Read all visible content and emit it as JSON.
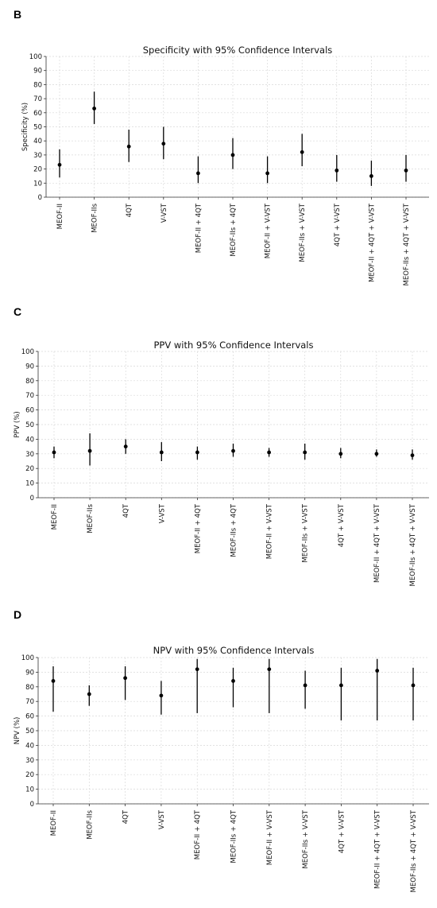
{
  "panels": [
    {
      "letter": "B"
    },
    {
      "letter": "C"
    },
    {
      "letter": "D"
    }
  ],
  "chart_data": [
    {
      "type": "scatter",
      "title": "Specificity with 95% Confidence Intervals",
      "ylabel": "Specificity (%)",
      "xlabel": "",
      "ylim": [
        0,
        100
      ],
      "yticks": [
        0,
        10,
        20,
        30,
        40,
        50,
        60,
        70,
        80,
        90,
        100
      ],
      "grid": true,
      "categories": [
        "MEOF-II",
        "MEOF-IIs",
        "4QT",
        "V-VST",
        "MEOF-II + 4QT",
        "MEOF-IIs + 4QT",
        "MEOF-II + V-VST",
        "MEOF-IIs + V-VST",
        "4QT + V-VST",
        "MEOF-II + 4QT + V-VST",
        "MEOF-IIs + 4QT + V-VST"
      ],
      "values": [
        23,
        63,
        36,
        38,
        17,
        30,
        17,
        32,
        19,
        15,
        19
      ],
      "lower": [
        14,
        52,
        25,
        27,
        10,
        20,
        10,
        22,
        11,
        8,
        11
      ],
      "upper": [
        34,
        75,
        48,
        50,
        29,
        42,
        29,
        45,
        30,
        26,
        30
      ]
    },
    {
      "type": "scatter",
      "title": "PPV with 95% Confidence Intervals",
      "ylabel": "PPV (%)",
      "xlabel": "",
      "ylim": [
        0,
        100
      ],
      "yticks": [
        0,
        10,
        20,
        30,
        40,
        50,
        60,
        70,
        80,
        90,
        100
      ],
      "grid": true,
      "categories": [
        "MEOF-II",
        "MEOF-IIs",
        "4QT",
        "V-VST",
        "MEOF-II + 4QT",
        "MEOF-IIs + 4QT",
        "MEOF-II + V-VST",
        "MEOF-IIs + V-VST",
        "4QT + V-VST",
        "MEOF-II + 4QT + V-VST",
        "MEOF-IIs + 4QT + V-VST"
      ],
      "values": [
        31,
        32,
        35,
        31,
        31,
        32,
        31,
        31,
        30,
        30,
        29
      ],
      "lower": [
        27,
        22,
        30,
        25,
        26,
        28,
        28,
        26,
        27,
        28,
        26
      ],
      "upper": [
        35,
        44,
        40,
        38,
        35,
        37,
        34,
        37,
        34,
        33,
        33
      ]
    },
    {
      "type": "scatter",
      "title": "NPV with 95% Confidence Intervals",
      "ylabel": "NPV (%)",
      "xlabel": "",
      "ylim": [
        0,
        100
      ],
      "yticks": [
        0,
        10,
        20,
        30,
        40,
        50,
        60,
        70,
        80,
        90,
        100
      ],
      "grid": true,
      "categories": [
        "MEOF-II",
        "MEOF-IIs",
        "4QT",
        "V-VST",
        "MEOF-II + 4QT",
        "MEOF-IIs + 4QT",
        "MEOF-II + V-VST",
        "MEOF-IIs + V-VST",
        "4QT + V-VST",
        "MEOF-II + 4QT + V-VST",
        "MEOF-IIs + 4QT + V-VST"
      ],
      "values": [
        84,
        75,
        86,
        74,
        92,
        84,
        92,
        81,
        81,
        91,
        81
      ],
      "lower": [
        63,
        67,
        71,
        61,
        62,
        66,
        62,
        65,
        57,
        57,
        57
      ],
      "upper": [
        94,
        81,
        94,
        84,
        99,
        93,
        99,
        91,
        93,
        99,
        93
      ]
    }
  ]
}
